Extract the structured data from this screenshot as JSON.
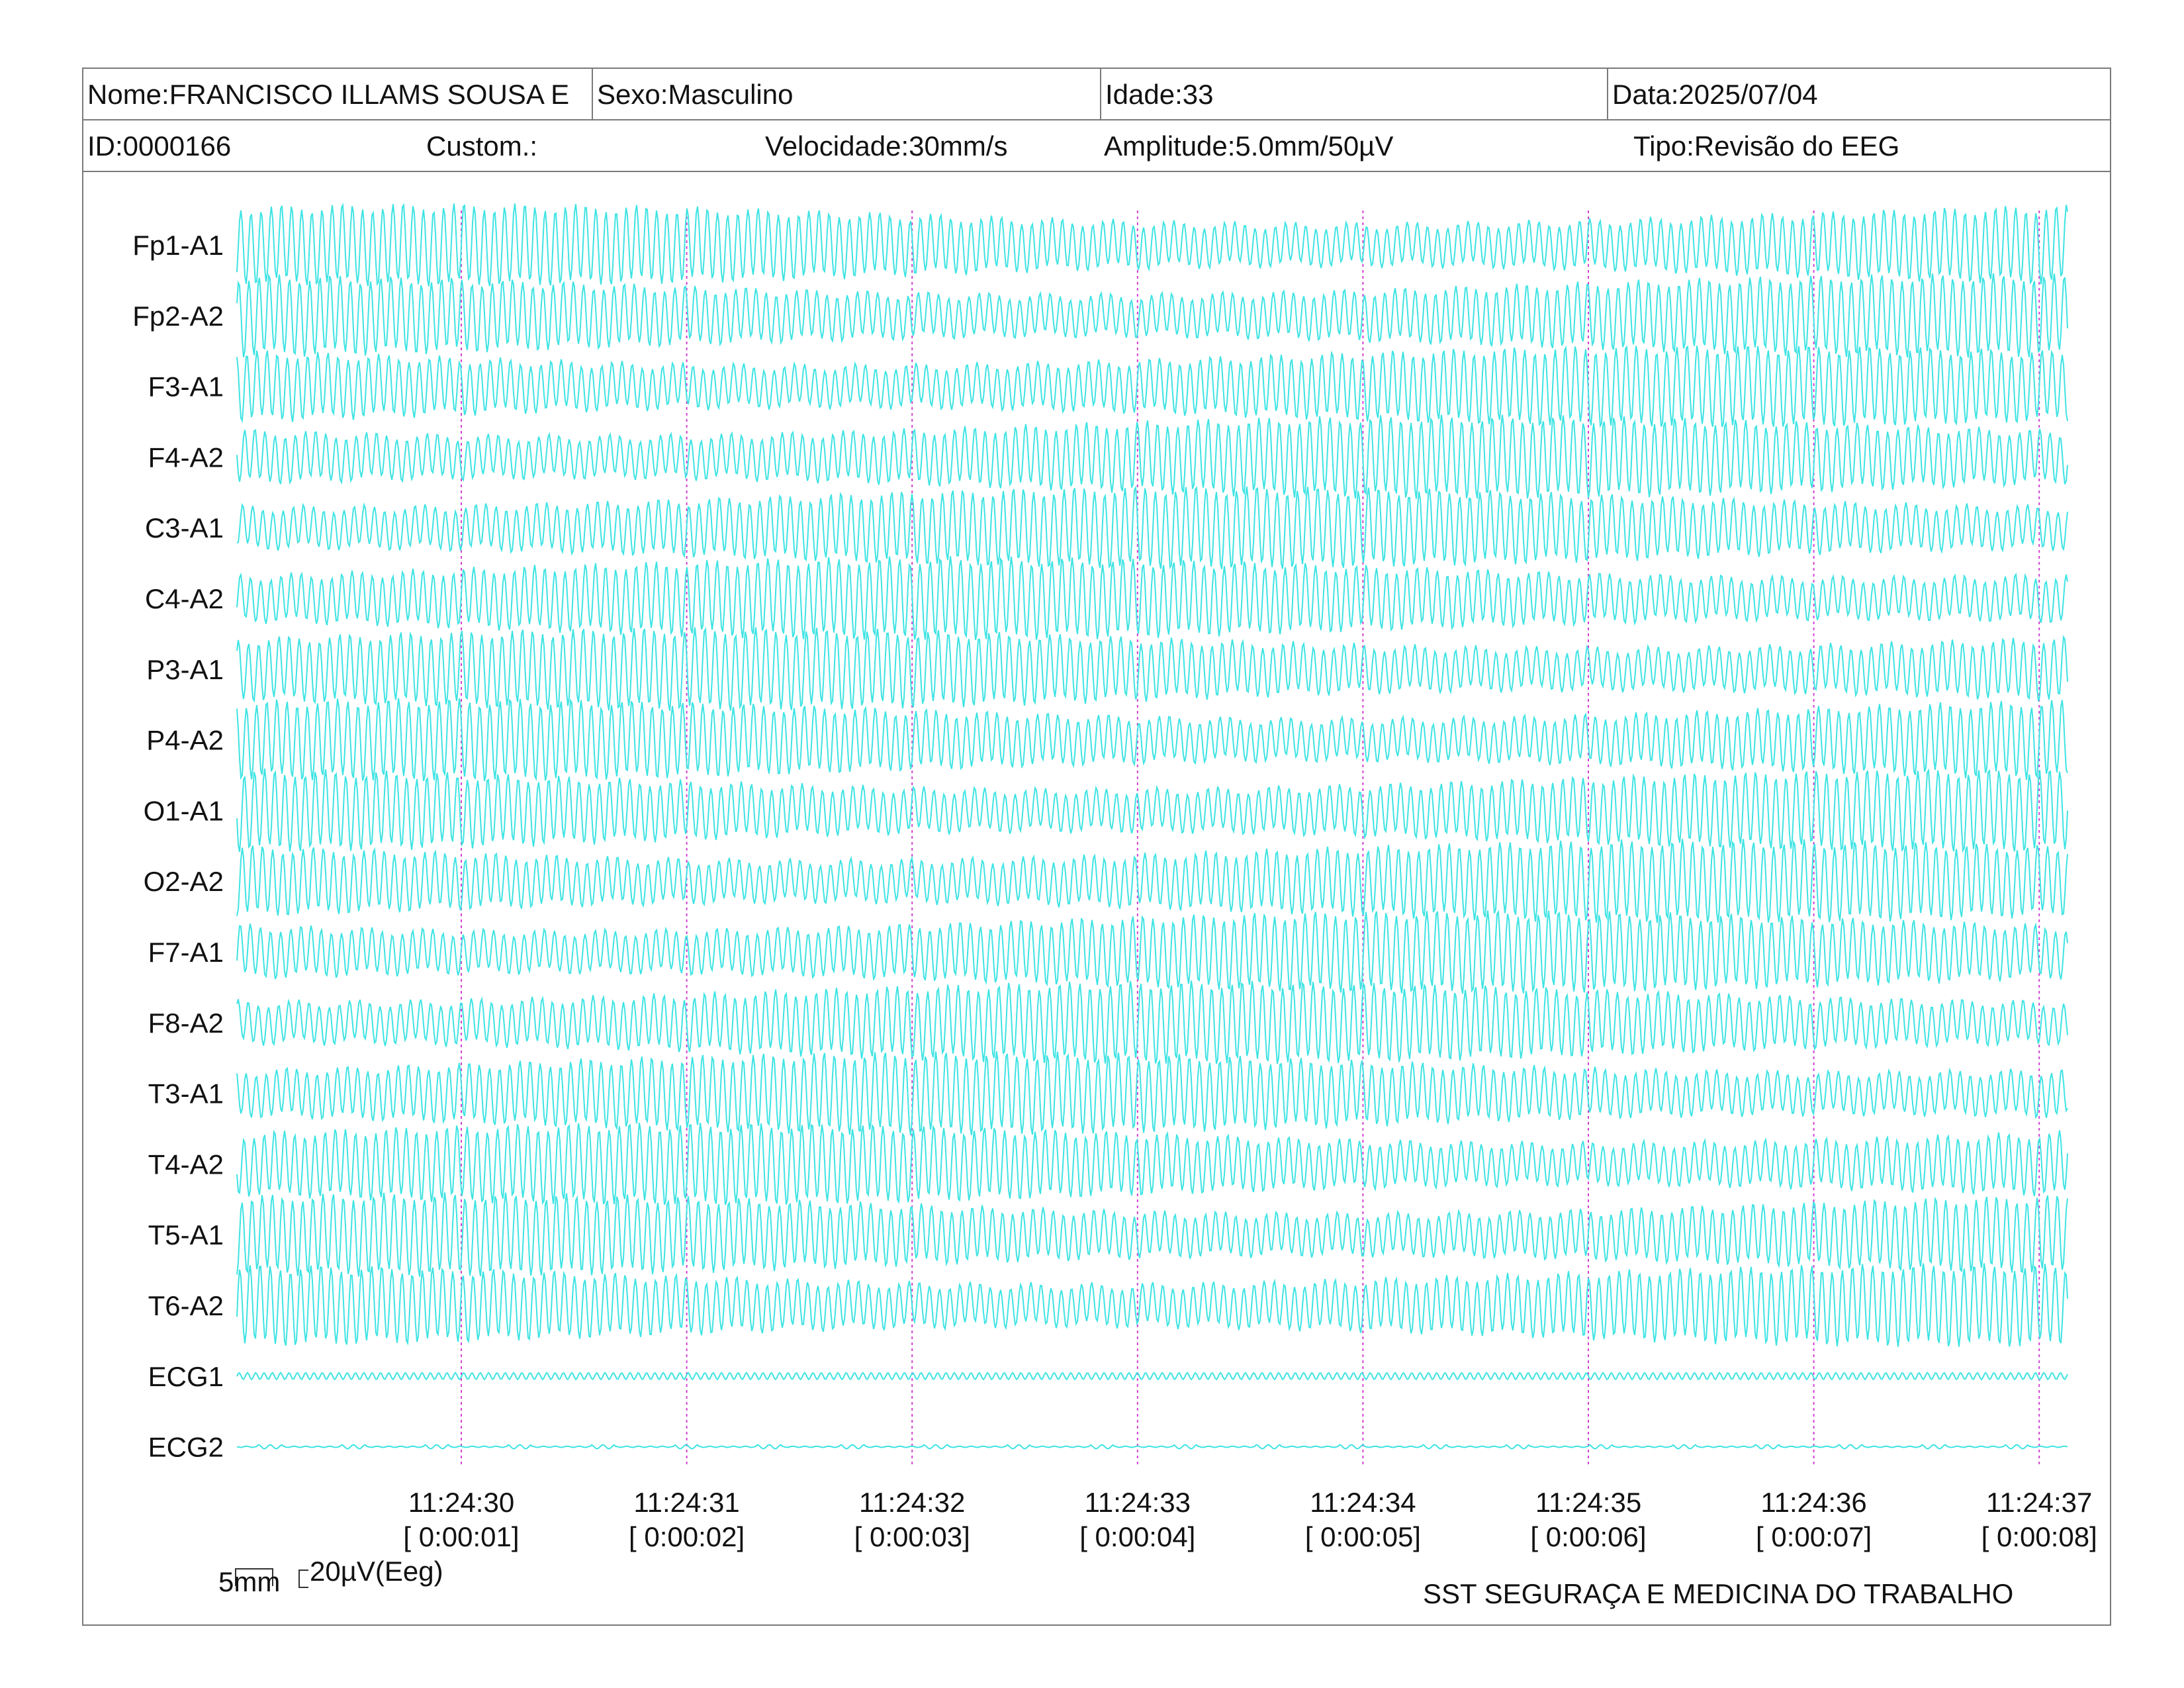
{
  "header": {
    "name": "Nome:FRANCISCO ILLAMS SOUSA E",
    "sex": "Sexo:Masculino",
    "age": "Idade:33",
    "date": "Data:2025/07/04",
    "id": "ID:0000166",
    "custom": "Custom.:",
    "speed": "Velocidade:30mm/s",
    "amplitude": "Amplitude:5.0mm/50µV",
    "type": "Tipo:Revisão do EEG"
  },
  "channels": [
    "Fp1-A1",
    "Fp2-A2",
    "F3-A1",
    "F4-A2",
    "C3-A1",
    "C4-A2",
    "P3-A1",
    "P4-A2",
    "O1-A1",
    "O2-A2",
    "F7-A1",
    "F8-A2",
    "T3-A1",
    "T4-A2",
    "T5-A1",
    "T6-A2",
    "ECG1",
    "ECG2"
  ],
  "time_marks": [
    {
      "clock": "11:24:30",
      "elapsed": "[ 0:00:01]"
    },
    {
      "clock": "11:24:31",
      "elapsed": "[ 0:00:02]"
    },
    {
      "clock": "11:24:32",
      "elapsed": "[ 0:00:03]"
    },
    {
      "clock": "11:24:33",
      "elapsed": "[ 0:00:04]"
    },
    {
      "clock": "11:24:34",
      "elapsed": "[ 0:00:05]"
    },
    {
      "clock": "11:24:35",
      "elapsed": "[ 0:00:06]"
    },
    {
      "clock": "11:24:36",
      "elapsed": "[ 0:00:07]"
    },
    {
      "clock": "11:24:37",
      "elapsed": "[ 0:00:08]"
    }
  ],
  "scale": {
    "time": "5mm",
    "amplitude": "20µV(Eeg)"
  },
  "footer": {
    "organization": "SST SEGURAÇA E MEDICINA DO TRABALHO"
  },
  "colors": {
    "trace": "#3fe3e3",
    "marker": "#d040d0",
    "frame": "#7a7a7a"
  }
}
